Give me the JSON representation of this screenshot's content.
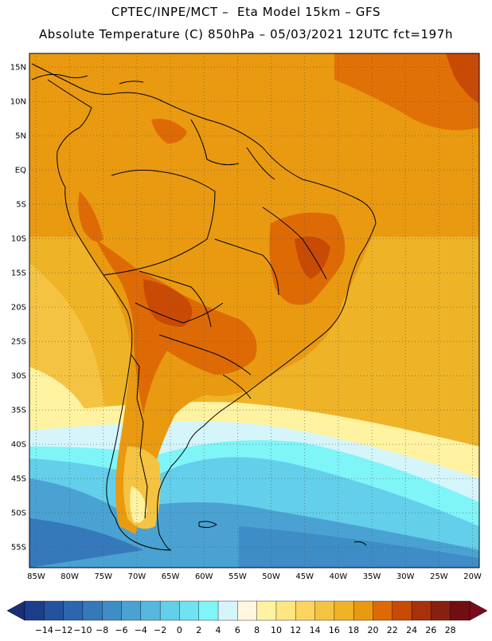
{
  "header": {
    "line1": "CPTEC/INPE/MCT –  Eta Model 15km – GFS",
    "line2": "Absolute Temperature (C) 850hPa – 05/03/2021 12UTC fct=197h"
  },
  "map": {
    "lat_labels": [
      "15N",
      "10N",
      "5N",
      "EQ",
      "5S",
      "10S",
      "15S",
      "20S",
      "25S",
      "30S",
      "35S",
      "40S",
      "45S",
      "50S",
      "55S"
    ],
    "lon_labels": [
      "85W",
      "80W",
      "75W",
      "70W",
      "65W",
      "60W",
      "55W",
      "50W",
      "45W",
      "40W",
      "35W",
      "30W",
      "25W",
      "20W"
    ],
    "lat_range": [
      17,
      -58
    ],
    "lon_range": [
      -86,
      -19
    ]
  },
  "colorbar": {
    "ticks": [
      "-14",
      "-12",
      "-10",
      "-8",
      "-6",
      "-4",
      "-2",
      "0",
      "2",
      "4",
      "6",
      "8",
      "10",
      "12",
      "14",
      "16",
      "18",
      "20",
      "22",
      "24",
      "26",
      "28"
    ],
    "colors": [
      "#1c3d8c",
      "#23529e",
      "#2c66b0",
      "#3579bb",
      "#3e8dc6",
      "#4aa2d2",
      "#56b8de",
      "#63cfea",
      "#6fe3f1",
      "#7ff5f8",
      "#d5f5fb",
      "#fff7e0",
      "#fff2a0",
      "#ffe680",
      "#fdd55e",
      "#f5c342",
      "#eeb327",
      "#e99a10",
      "#de6a06",
      "#c84a05",
      "#a8300a",
      "#872010",
      "#720e12"
    ],
    "low_arrow_color": "#1a2f78",
    "high_arrow_color": "#7c0a1e"
  }
}
